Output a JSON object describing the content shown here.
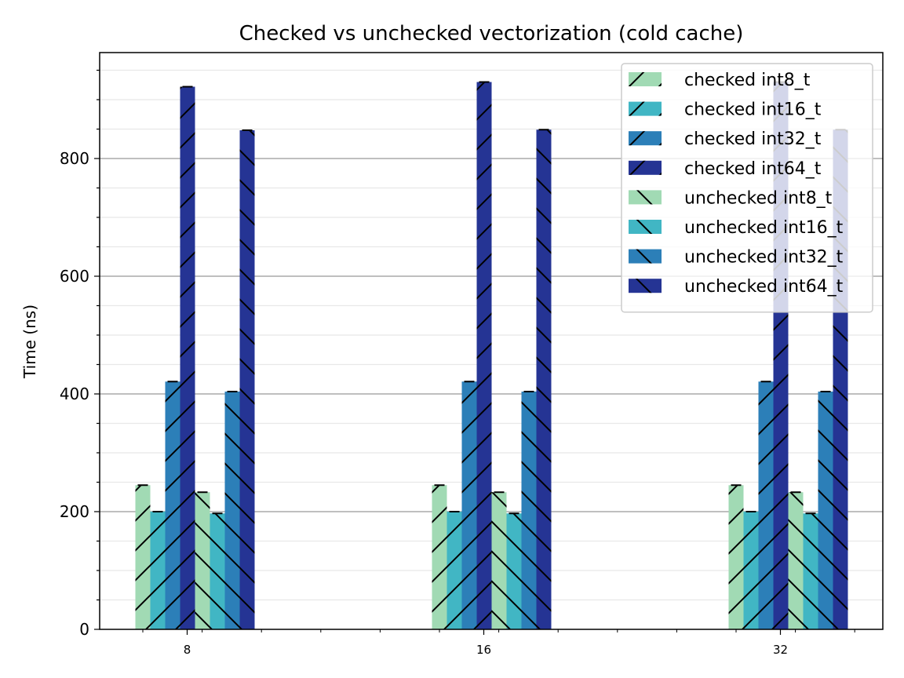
{
  "chart_data": {
    "type": "bar",
    "title": "Checked vs unchecked vectorization (cold cache)",
    "xlabel": "",
    "ylabel": "Time (ns)",
    "categories": [
      "8",
      "16",
      "32"
    ],
    "ylim": [
      0,
      980
    ],
    "yticks": [
      0,
      200,
      400,
      600,
      800
    ],
    "y_minor_step": 50,
    "grid": "horizontal",
    "legend_position": "top-right",
    "series": [
      {
        "name": "checked int8_t",
        "color": "#a1dab4",
        "hatch": "forward",
        "values": [
          245,
          245,
          245
        ]
      },
      {
        "name": "checked int16_t",
        "color": "#41b6c4",
        "hatch": "forward",
        "values": [
          200,
          200,
          200
        ]
      },
      {
        "name": "checked int32_t",
        "color": "#2c7fb8",
        "hatch": "forward",
        "values": [
          421,
          421,
          421
        ]
      },
      {
        "name": "checked int64_t",
        "color": "#253494",
        "hatch": "forward",
        "values": [
          922,
          930,
          930
        ]
      },
      {
        "name": "unchecked int8_t",
        "color": "#a1dab4",
        "hatch": "back",
        "values": [
          233,
          233,
          233
        ]
      },
      {
        "name": "unchecked int16_t",
        "color": "#41b6c4",
        "hatch": "back",
        "values": [
          197,
          197,
          197
        ]
      },
      {
        "name": "unchecked int32_t",
        "color": "#2c7fb8",
        "hatch": "back",
        "values": [
          404,
          404,
          404
        ]
      },
      {
        "name": "unchecked int64_t",
        "color": "#253494",
        "hatch": "back",
        "values": [
          848,
          849,
          849
        ]
      }
    ]
  }
}
